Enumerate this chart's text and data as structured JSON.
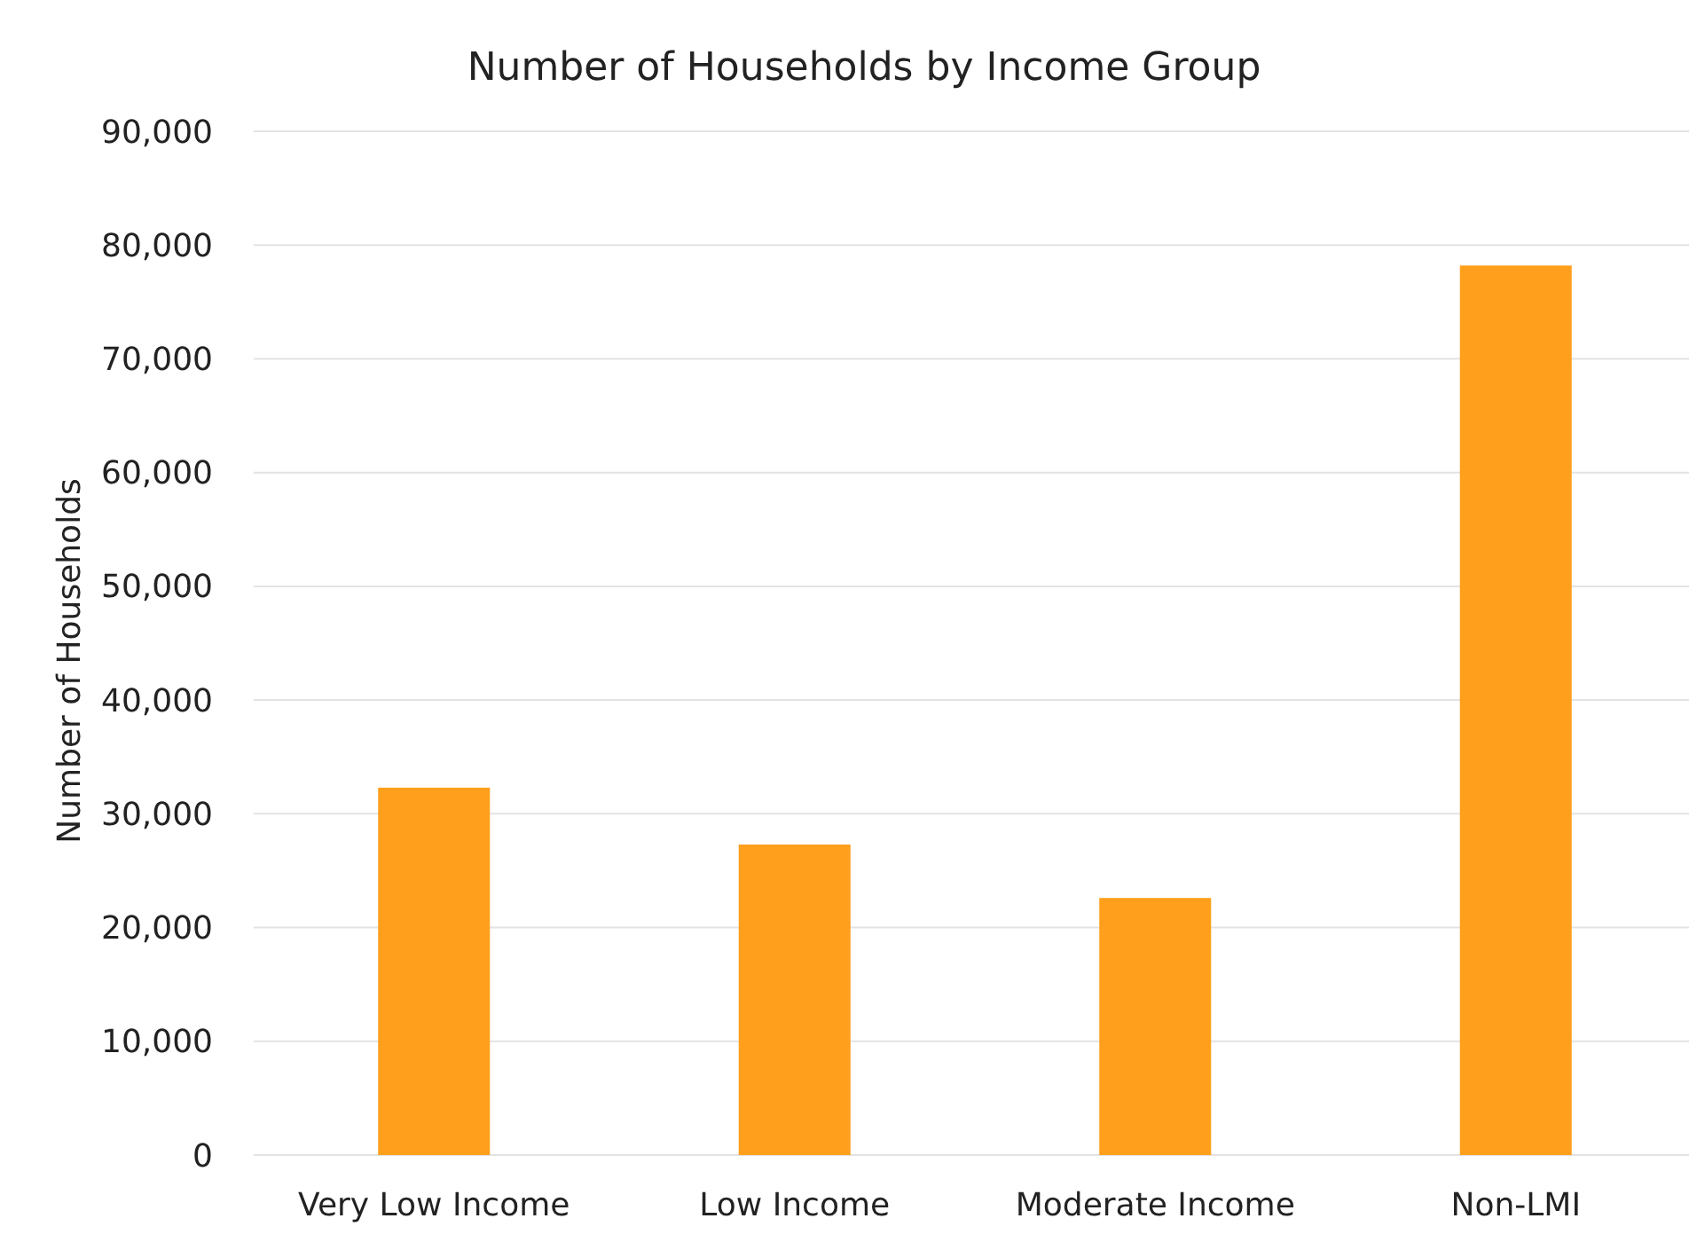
{
  "chart_data": {
    "type": "bar",
    "title": "Number of Households by Income Group",
    "ylabel": "Number of Households",
    "categories": [
      "Very Low Income",
      "Low Income",
      "Moderate Income",
      "Non-LMI"
    ],
    "values": [
      32300,
      27300,
      22600,
      78200
    ],
    "color": "#ff9f1c",
    "ylim": [
      0,
      90000
    ],
    "yticks": [
      0,
      {
        "value": 10000,
        "label": "10,000"
      },
      {
        "value": 20000,
        "label": "20,000"
      },
      {
        "value": 30000,
        "label": "30,000"
      },
      {
        "value": 40000,
        "label": "40,000"
      },
      {
        "value": 50000,
        "label": "50,000"
      },
      {
        "value": 60000,
        "label": "60,000"
      },
      {
        "value": 70000,
        "label": "70,000"
      },
      {
        "value": 80000,
        "label": "80,000"
      },
      {
        "value": 90000,
        "label": "90,000"
      }
    ],
    "grid": "y"
  }
}
